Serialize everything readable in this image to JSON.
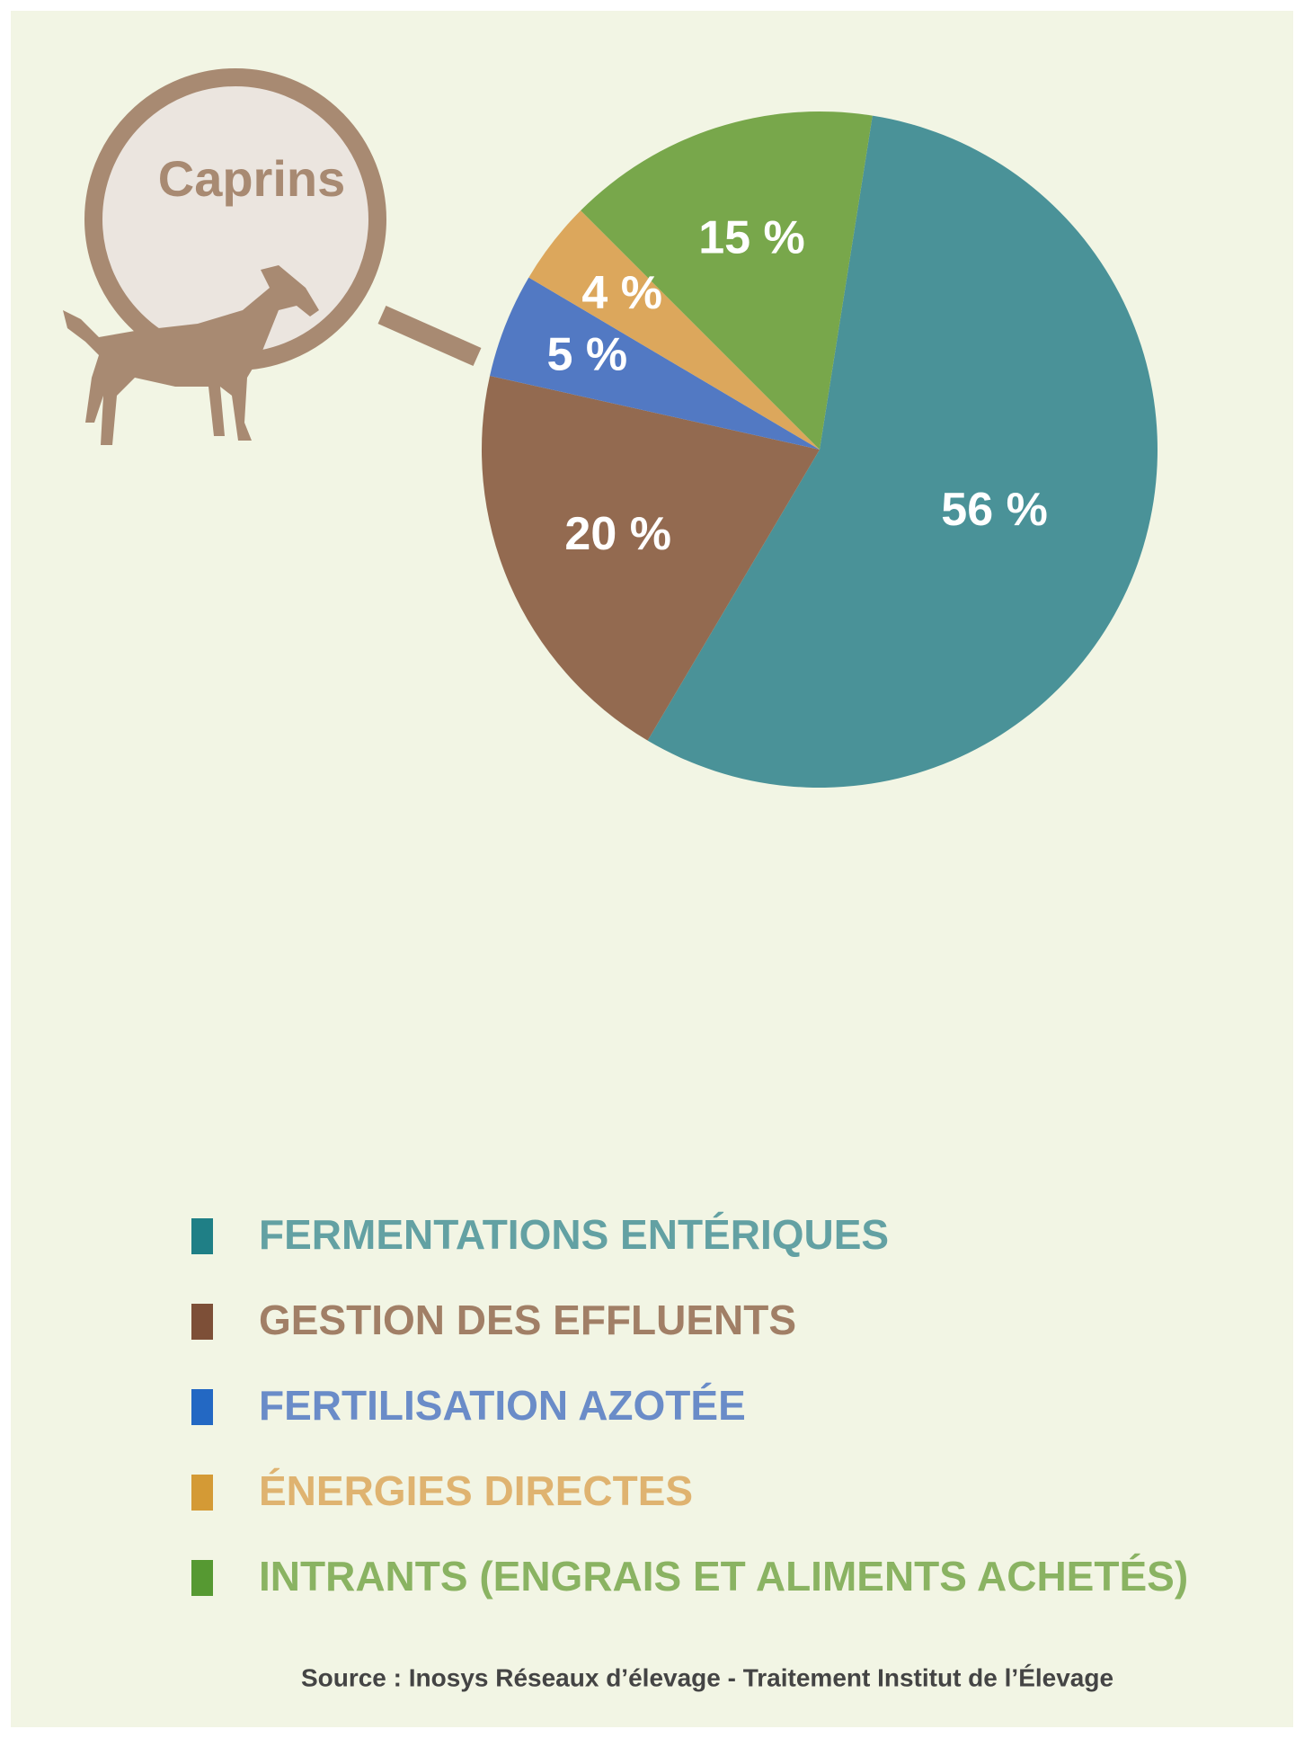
{
  "chart_data": {
    "type": "pie",
    "title": "Caprins",
    "categories": [
      "FERMENTATIONS ENTÉRIQUES",
      "GESTION DES EFFLUENTS",
      "FERTILISATION AZOTÉE",
      "ÉNERGIES DIRECTES",
      "INTRANTS (ENGRAIS ET ALIMENTS ACHETÉS)"
    ],
    "values": [
      56,
      20,
      5,
      4,
      15
    ],
    "value_labels": [
      "56 %",
      "20 %",
      "5 %",
      "4 %",
      "15 %"
    ],
    "colors": [
      "#4a9298",
      "#936a50",
      "#5279c3",
      "#dca75c",
      "#78a74b"
    ],
    "legend_square_colors": [
      "#1f7f86",
      "#7d4f37",
      "#2368c3",
      "#d49a35",
      "#569932"
    ],
    "source": "Source : Inosys Réseaux d’élevage - Traitement Institut de l’Élevage"
  }
}
